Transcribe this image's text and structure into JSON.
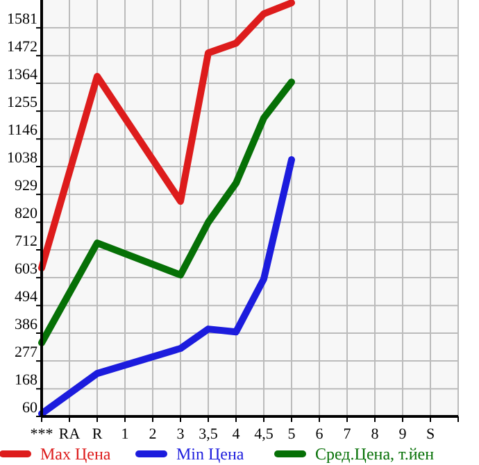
{
  "chart_data": {
    "type": "line",
    "categories": [
      "***",
      "RA",
      "R",
      "1",
      "2",
      "3",
      "3,5",
      "4",
      "4,5",
      "5",
      "6",
      "7",
      "8",
      "9",
      "S"
    ],
    "ylim": [
      60,
      1690
    ],
    "yticks": [
      60,
      168,
      277,
      386,
      494,
      603,
      712,
      820,
      929,
      1038,
      1146,
      1255,
      1364,
      1472,
      1581
    ],
    "grid": true,
    "legend": "bottom",
    "marker": "none",
    "line_style": "solid",
    "series": [
      {
        "name": "Max Цена",
        "color": "#dd1c1c",
        "values": [
          641,
          null,
          1391,
          null,
          null,
          902,
          1483,
          1521,
          1636,
          1679,
          null,
          null,
          null,
          null,
          null
        ]
      },
      {
        "name": "Min Цена",
        "color": "#1c1cdd",
        "values": [
          71,
          null,
          228,
          null,
          null,
          326,
          402,
          391,
          598,
          1065,
          null,
          null,
          null,
          null,
          null
        ]
      },
      {
        "name": "Сред.Цена, т.йен",
        "color": "#067006",
        "values": [
          348,
          null,
          739,
          null,
          null,
          614,
          820,
          973,
          1228,
          1369,
          null,
          null,
          null,
          null,
          null
        ]
      }
    ]
  }
}
